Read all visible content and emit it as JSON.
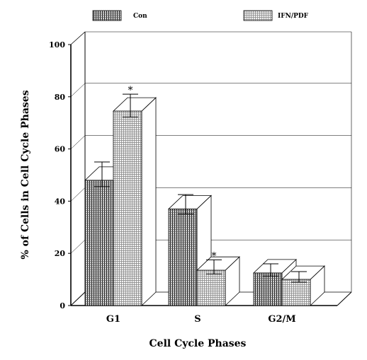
{
  "chart_data": {
    "type": "bar",
    "categories": [
      "G1",
      "S",
      "G2/M"
    ],
    "series": [
      {
        "name": "Con",
        "values": [
          48,
          37,
          12.5
        ],
        "errors": [
          7,
          5.5,
          3.5
        ]
      },
      {
        "name": "IFN/PDF",
        "values": [
          74.5,
          13.5,
          10
        ],
        "errors": [
          6.5,
          4,
          3
        ]
      }
    ],
    "annotations": [
      {
        "series": 1,
        "category": 0,
        "text": "*"
      },
      {
        "series": 1,
        "category": 1,
        "text": "*"
      }
    ],
    "xlabel": "Cell Cycle Phases",
    "ylabel": "% of Cells in Cell Cycle Phases",
    "ylim": [
      0,
      100
    ],
    "yticks": [
      0,
      20,
      40,
      60,
      80,
      100
    ],
    "grid": true,
    "legend": "top",
    "style": "3d-bars"
  }
}
